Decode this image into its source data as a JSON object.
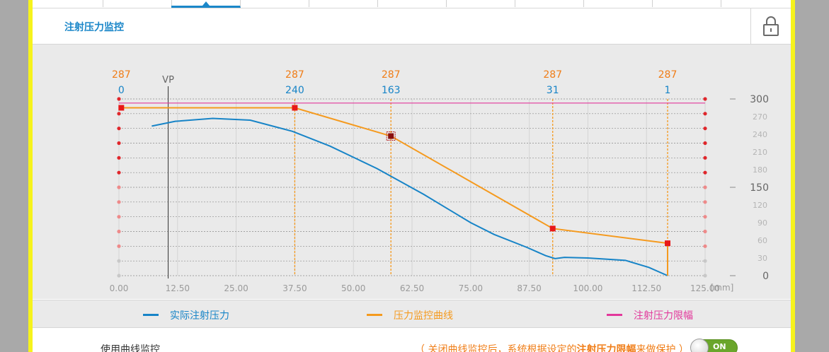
{
  "header": {
    "title": "注射压力监控"
  },
  "icons": {
    "lock": "lock-icon"
  },
  "chart_data": {
    "type": "line",
    "x_ticks": [
      "0.00",
      "12.50",
      "25.00",
      "37.50",
      "50.00",
      "62.50",
      "75.00",
      "87.50",
      "100.00",
      "112.50",
      "125.00"
    ],
    "x_unit": "[mm]",
    "xlim": [
      0,
      125
    ],
    "y_major_ticks": [
      "300",
      "150",
      "0"
    ],
    "y_minor_ticks": [
      "270",
      "240",
      "210",
      "180",
      "120",
      "90",
      "60",
      "30"
    ],
    "ylim": [
      0,
      300
    ],
    "vp_label": "VP",
    "vp_x": 10.5,
    "markers": [
      {
        "x": 0.5,
        "pressure": "287",
        "position": "0"
      },
      {
        "x": 37.5,
        "pressure": "287",
        "position": "240"
      },
      {
        "x": 58,
        "pressure": "287",
        "position": "163"
      },
      {
        "x": 92.5,
        "pressure": "287",
        "position": "31"
      },
      {
        "x": 117,
        "pressure": "287",
        "position": "1"
      }
    ],
    "series": [
      {
        "name": "实际注射压力",
        "color": "#1784c7",
        "points": [
          [
            7,
            254
          ],
          [
            12,
            262
          ],
          [
            20,
            267
          ],
          [
            28,
            264
          ],
          [
            37,
            245
          ],
          [
            45,
            220
          ],
          [
            55,
            182
          ],
          [
            65,
            138
          ],
          [
            75,
            90
          ],
          [
            80,
            70
          ],
          [
            87,
            48
          ],
          [
            91,
            34
          ],
          [
            93,
            29
          ],
          [
            95,
            31
          ],
          [
            100,
            30
          ],
          [
            108,
            26
          ],
          [
            113,
            14
          ],
          [
            117,
            0
          ]
        ]
      },
      {
        "name": "压力监控曲线",
        "color": "#f59a1e",
        "points": [
          [
            0.5,
            285
          ],
          [
            37.5,
            285
          ],
          [
            58,
            237
          ],
          [
            92.5,
            80
          ],
          [
            117,
            55
          ],
          [
            117,
            0
          ]
        ]
      },
      {
        "name": "注射压力限幅",
        "color": "#e2389b",
        "points": [
          [
            0,
            293
          ],
          [
            125,
            293
          ]
        ]
      }
    ]
  },
  "legend": [
    {
      "label": "实际注射压力",
      "color": "#1784c7"
    },
    {
      "label": "压力监控曲线",
      "color": "#f59a1e"
    },
    {
      "label": "注射压力限幅",
      "color": "#e2389b"
    }
  ],
  "bottom": {
    "use_curve_label": "使用曲线监控",
    "note_prefix": "（ 关闭曲线监控后，系统根据设定的",
    "note_bold": "注射压力限幅",
    "note_suffix": "来做保护 ）",
    "toggle_label": "ON"
  }
}
